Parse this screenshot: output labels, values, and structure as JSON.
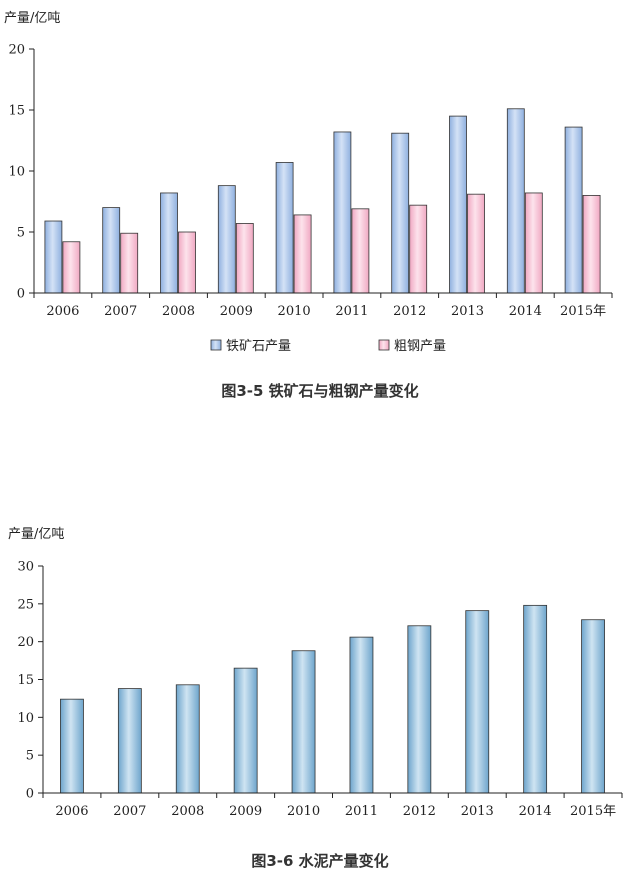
{
  "chart_data": [
    {
      "type": "bar",
      "ylabel": "产量/亿吨",
      "ylim": [
        0,
        20
      ],
      "yticks": [
        0,
        5,
        10,
        15,
        20
      ],
      "categories": [
        "2006",
        "2007",
        "2008",
        "2009",
        "2010",
        "2011",
        "2012",
        "2013",
        "2014",
        "2015年"
      ],
      "series": [
        {
          "name": "铁矿石产量",
          "color": "#a9c3e8",
          "values": [
            5.9,
            7.0,
            8.2,
            8.8,
            10.7,
            13.2,
            13.1,
            14.5,
            15.1,
            13.6
          ]
        },
        {
          "name": "粗钢产量",
          "color": "#f6c2d4",
          "values": [
            4.2,
            4.9,
            5.0,
            5.7,
            6.4,
            6.9,
            7.2,
            8.1,
            8.2,
            8.0
          ]
        }
      ],
      "caption": "图3-5  铁矿石与粗钢产量变化",
      "grid": false
    },
    {
      "type": "bar",
      "ylabel": "产量/亿吨",
      "ylim": [
        0,
        30
      ],
      "yticks": [
        0,
        5,
        10,
        15,
        20,
        25,
        30
      ],
      "categories": [
        "2006",
        "2007",
        "2008",
        "2009",
        "2010",
        "2011",
        "2012",
        "2013",
        "2014",
        "2015年"
      ],
      "series": [
        {
          "color": "#8fbcd9",
          "values": [
            12.4,
            13.8,
            14.3,
            16.5,
            18.8,
            20.6,
            22.1,
            24.1,
            24.8,
            22.9
          ]
        }
      ],
      "caption": "图3-6  水泥产量变化",
      "grid": false
    }
  ]
}
